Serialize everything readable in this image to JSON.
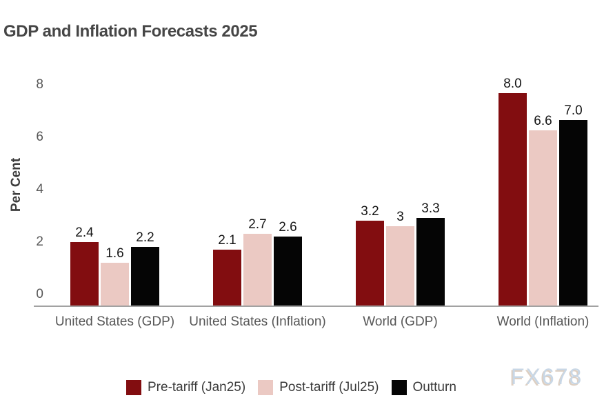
{
  "chart_data": {
    "type": "bar",
    "title": "GDP and Inflation Forecasts 2025",
    "xlabel": "",
    "ylabel": "Per Cent",
    "ylim": [
      0,
      8
    ],
    "yticks": [
      0,
      2,
      4,
      6,
      8
    ],
    "grid": false,
    "legend_position": "bottom",
    "categories": [
      "United States (GDP)",
      "United States (Inflation)",
      "World (GDP)",
      "World (Inflation)"
    ],
    "series": [
      {
        "name": "Pre-tariff (Jan25)",
        "color": "#820d10",
        "values": [
          2.4,
          2.1,
          3.2,
          8.0
        ],
        "value_labels": [
          "2.4",
          "2.1",
          "3.2",
          "8.0"
        ]
      },
      {
        "name": "Post-tariff (Jul25)",
        "color": "#ebc9c3",
        "values": [
          1.6,
          2.7,
          3.0,
          6.6
        ],
        "value_labels": [
          "1.6",
          "2.7",
          "3",
          "6.6"
        ]
      },
      {
        "name": "Outturn",
        "color": "#050505",
        "values": [
          2.2,
          2.6,
          3.3,
          7.0
        ],
        "value_labels": [
          "2.2",
          "2.6",
          "3.3",
          "7.0"
        ]
      }
    ]
  },
  "watermark": "FX678",
  "colors": {
    "axis_line": "#a2a2a2",
    "title_text": "#464646",
    "tick_text": "#575757",
    "value_text": "#161616",
    "watermark_text": "#c6d5e5"
  }
}
